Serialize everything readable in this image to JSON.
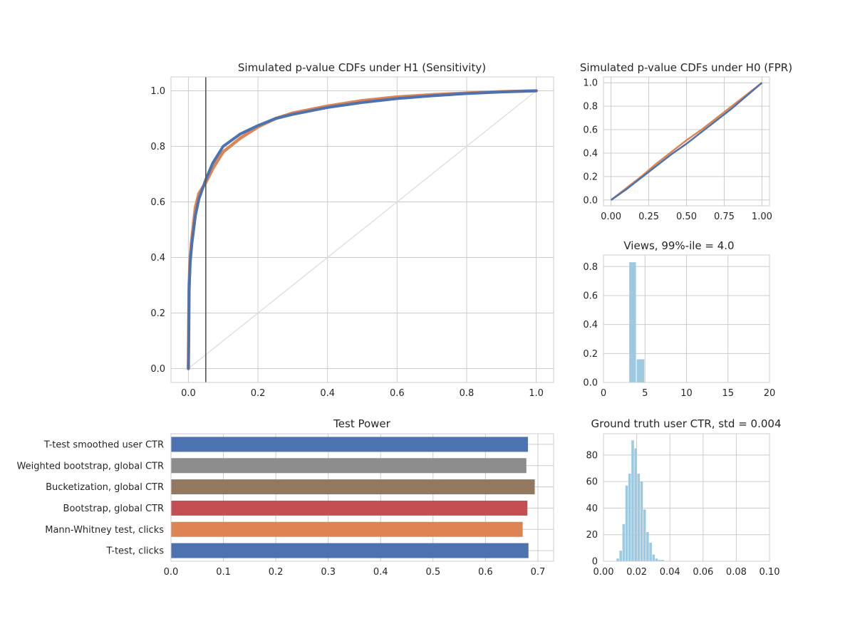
{
  "chart_data": [
    {
      "id": "h1",
      "type": "line",
      "title": "Simulated p-value CDFs under H1 (Sensitivity)",
      "xlim": [
        -0.05,
        1.05
      ],
      "ylim": [
        -0.05,
        1.05
      ],
      "xticks": [
        "0.0",
        "0.2",
        "0.4",
        "0.6",
        "0.8",
        "1.0"
      ],
      "yticks": [
        "0.0",
        "0.2",
        "0.4",
        "0.6",
        "0.8",
        "1.0"
      ],
      "vline_x": 0.05,
      "reference_diagonal": [
        [
          0,
          0
        ],
        [
          1,
          1
        ]
      ],
      "series": [
        {
          "name": "orange",
          "color": "#dd8452",
          "x": [
            0,
            0.002,
            0.005,
            0.01,
            0.02,
            0.03,
            0.05,
            0.07,
            0.1,
            0.15,
            0.2,
            0.25,
            0.3,
            0.4,
            0.5,
            0.6,
            0.7,
            0.8,
            0.9,
            1.0
          ],
          "y": [
            0,
            0.3,
            0.4,
            0.47,
            0.58,
            0.63,
            0.67,
            0.72,
            0.78,
            0.83,
            0.87,
            0.9,
            0.92,
            0.945,
            0.965,
            0.978,
            0.986,
            0.992,
            0.997,
            1.0
          ]
        },
        {
          "name": "blue",
          "color": "#4c72b0",
          "x": [
            0,
            0.002,
            0.005,
            0.01,
            0.02,
            0.03,
            0.05,
            0.07,
            0.1,
            0.15,
            0.2,
            0.25,
            0.3,
            0.4,
            0.5,
            0.6,
            0.7,
            0.8,
            0.9,
            1.0
          ],
          "y": [
            0,
            0.28,
            0.38,
            0.45,
            0.55,
            0.61,
            0.68,
            0.74,
            0.8,
            0.845,
            0.875,
            0.9,
            0.915,
            0.94,
            0.958,
            0.972,
            0.982,
            0.99,
            0.996,
            1.0
          ]
        }
      ]
    },
    {
      "id": "h0",
      "type": "line",
      "title": "Simulated p-value CDFs under H0 (FPR)",
      "xlim": [
        -0.05,
        1.05
      ],
      "ylim": [
        -0.05,
        1.05
      ],
      "xticks": [
        "0.00",
        "0.25",
        "0.50",
        "0.75",
        "1.00"
      ],
      "yticks": [
        "0.0",
        "0.2",
        "0.4",
        "0.6",
        "0.8",
        "1.0"
      ],
      "series": [
        {
          "name": "orange",
          "color": "#dd8452",
          "x": [
            0,
            0.1,
            0.2,
            0.3,
            0.4,
            0.5,
            0.6,
            0.7,
            0.8,
            0.9,
            1.0
          ],
          "y": [
            0,
            0.1,
            0.2,
            0.31,
            0.41,
            0.51,
            0.6,
            0.7,
            0.8,
            0.9,
            1.0
          ]
        },
        {
          "name": "blue",
          "color": "#4c72b0",
          "x": [
            0,
            0.1,
            0.2,
            0.3,
            0.4,
            0.5,
            0.6,
            0.7,
            0.8,
            0.9,
            1.0
          ],
          "y": [
            0,
            0.09,
            0.19,
            0.29,
            0.39,
            0.48,
            0.58,
            0.68,
            0.78,
            0.89,
            1.0
          ]
        }
      ]
    },
    {
      "id": "views",
      "type": "bar",
      "title": "Views, 99%-ile = 4.0",
      "xlim": [
        0,
        20
      ],
      "ylim": [
        0,
        0.88
      ],
      "xticks": [
        "0",
        "5",
        "10",
        "15",
        "20"
      ],
      "yticks": [
        "0.0",
        "0.2",
        "0.4",
        "0.6",
        "0.8"
      ],
      "color": "#9ecae1",
      "bins": [
        {
          "x0": 3.1,
          "x1": 4.0,
          "value": 0.83
        },
        {
          "x0": 4.0,
          "x1": 5.0,
          "value": 0.16
        }
      ]
    },
    {
      "id": "power",
      "type": "bar",
      "orientation": "horizontal",
      "title": "Test Power",
      "xlim": [
        0,
        0.73
      ],
      "xticks": [
        "0.0",
        "0.1",
        "0.2",
        "0.3",
        "0.4",
        "0.5",
        "0.6",
        "0.7"
      ],
      "categories": [
        "T-test smoothed user CTR",
        "Weighted bootstrap, global CTR",
        "Bucketization, global CTR",
        "Bootstrap, global CTR",
        "Mann-Whitney test, clicks",
        "T-test, clicks"
      ],
      "values": [
        0.681,
        0.678,
        0.694,
        0.68,
        0.671,
        0.682
      ],
      "colors": [
        "#4c72b0",
        "#8c8c8c",
        "#937860",
        "#c44e52",
        "#dd8452",
        "#4c72b0"
      ]
    },
    {
      "id": "ctr",
      "type": "bar",
      "title": "Ground truth user CTR, std = 0.004",
      "xlim": [
        0,
        0.1
      ],
      "ylim": [
        0,
        96
      ],
      "xticks": [
        "0.00",
        "0.02",
        "0.04",
        "0.06",
        "0.08",
        "0.10"
      ],
      "yticks": [
        "0",
        "20",
        "40",
        "60",
        "80"
      ],
      "color": "#9ecae1",
      "bin_width": 0.0018,
      "bin_starts": [
        0.0078,
        0.0096,
        0.0114,
        0.0132,
        0.015,
        0.0168,
        0.0186,
        0.0204,
        0.0222,
        0.024,
        0.0258,
        0.0276,
        0.0294,
        0.0312,
        0.033,
        0.0348
      ],
      "counts": [
        2,
        8,
        28,
        57,
        66,
        91,
        85,
        66,
        60,
        39,
        22,
        14,
        5,
        2,
        1,
        1
      ]
    }
  ]
}
